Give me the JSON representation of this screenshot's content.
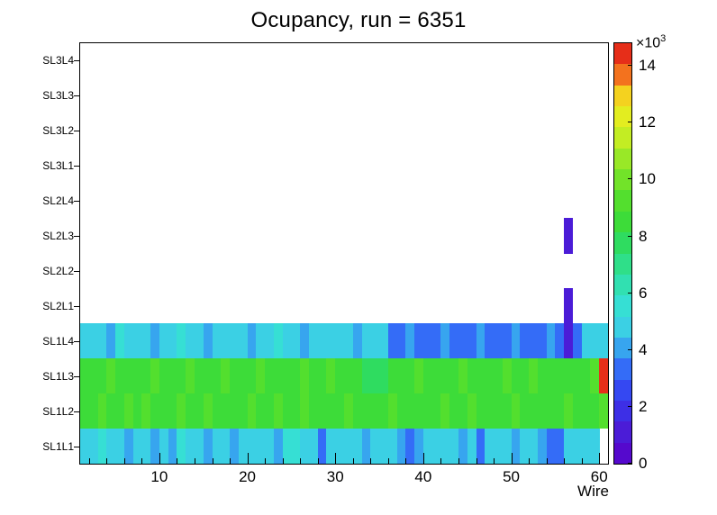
{
  "title": "Ocupancy, run = 6351",
  "axes": {
    "x_label": "Wire",
    "x_ticks": [
      10,
      20,
      30,
      40,
      50,
      60
    ],
    "x_minor_tick_step": 2,
    "colorbar": {
      "multiplier": "×10",
      "exponent": "3",
      "ticks": [
        0,
        2,
        4,
        6,
        8,
        10,
        12,
        14
      ],
      "unit_scale": 1000
    }
  },
  "chart_data": {
    "type": "heatmap",
    "title": "Ocupancy, run = 6351",
    "xlabel": "Wire",
    "x_min": 1,
    "n_wires": 60,
    "z_max": 14800,
    "n_contours": 20,
    "legend_position": "right-colorbar",
    "grid": false,
    "palette": [
      [
        0.0,
        "#5A00C8"
      ],
      [
        0.08,
        "#4A1ED8"
      ],
      [
        0.15,
        "#3538EE"
      ],
      [
        0.22,
        "#3466F8"
      ],
      [
        0.27,
        "#36A0F0"
      ],
      [
        0.32,
        "#3BCFE6"
      ],
      [
        0.38,
        "#35E0D2"
      ],
      [
        0.45,
        "#2FE09E"
      ],
      [
        0.52,
        "#2EDC64"
      ],
      [
        0.58,
        "#3EDC35"
      ],
      [
        0.65,
        "#5FE02A"
      ],
      [
        0.72,
        "#95E827"
      ],
      [
        0.79,
        "#CFEE22"
      ],
      [
        0.85,
        "#F2EC1F"
      ],
      [
        0.9,
        "#F5B71E"
      ],
      [
        0.93,
        "#F2641E"
      ],
      [
        1.0,
        "#E01016"
      ]
    ],
    "rows": [
      {
        "label": "SL1L1",
        "values": [
          5000,
          4600,
          5200,
          4600,
          4800,
          4300,
          5100,
          4600,
          4400,
          4900,
          4400,
          5200,
          4700,
          4800,
          4200,
          5000,
          4600,
          4400,
          5100,
          4700,
          4500,
          4900,
          4300,
          5400,
          5200,
          4600,
          4800,
          3600,
          4700,
          4500,
          4900,
          4600,
          4400,
          5000,
          4700,
          4600,
          3700,
          3500,
          3800,
          4600,
          4800,
          4500,
          4900,
          4300,
          4700,
          3600,
          4800,
          4600,
          5000,
          4400,
          4700,
          4500,
          3700,
          3500,
          3600,
          4600,
          4800,
          4500,
          4700,
          0
        ]
      },
      {
        "label": "SL1L2",
        "values": [
          8200,
          8800,
          9400,
          8600,
          8400,
          9000,
          8600,
          9600,
          8800,
          8400,
          8600,
          9200,
          8800,
          8600,
          9400,
          8600,
          8200,
          8800,
          8600,
          9000,
          8400,
          8600,
          9200,
          8600,
          8800,
          9400,
          8600,
          8400,
          8800,
          8600,
          9000,
          8600,
          8800,
          8400,
          8600,
          9200,
          8600,
          8800,
          8600,
          8400,
          8800,
          9000,
          8600,
          8800,
          9400,
          8600,
          8400,
          8800,
          8600,
          9000,
          8600,
          8800,
          8400,
          8600,
          8800,
          9200,
          8600,
          8800,
          8600,
          9000
        ]
      },
      {
        "label": "SL1L3",
        "values": [
          8400,
          8800,
          8600,
          9200,
          8600,
          8800,
          8400,
          8600,
          9000,
          8600,
          8800,
          8600,
          9400,
          8600,
          8800,
          8400,
          9000,
          8600,
          8800,
          8600,
          9200,
          8600,
          8400,
          8800,
          8600,
          9000,
          8600,
          8800,
          9400,
          8600,
          8400,
          8800,
          7600,
          7400,
          7800,
          8600,
          8800,
          8600,
          9000,
          8600,
          8800,
          8400,
          8600,
          9200,
          8600,
          8800,
          8600,
          8400,
          9000,
          8600,
          8800,
          9400,
          8600,
          8800,
          8600,
          8400,
          8800,
          8600,
          9000,
          14200
        ]
      },
      {
        "label": "SL1L4",
        "values": [
          5000,
          4600,
          4800,
          4400,
          5200,
          4800,
          4600,
          5000,
          4400,
          4800,
          4600,
          5200,
          4800,
          4600,
          4400,
          4800,
          5000,
          4600,
          4800,
          4400,
          4600,
          4800,
          5200,
          4600,
          4800,
          4400,
          4800,
          4600,
          5000,
          4800,
          4600,
          4400,
          4800,
          4600,
          5000,
          3600,
          3400,
          3800,
          3400,
          3600,
          3400,
          3800,
          3600,
          3400,
          3600,
          3800,
          3400,
          3600,
          3400,
          3800,
          3600,
          3400,
          3600,
          3800,
          3400,
          1200,
          3600,
          4600,
          4800,
          4600
        ]
      },
      {
        "label": "SL2L1",
        "values": [
          0,
          0,
          0,
          0,
          0,
          0,
          0,
          0,
          0,
          0,
          0,
          0,
          0,
          0,
          0,
          0,
          0,
          0,
          0,
          0,
          0,
          0,
          0,
          0,
          0,
          0,
          0,
          0,
          0,
          0,
          0,
          0,
          0,
          0,
          0,
          0,
          0,
          0,
          0,
          0,
          0,
          0,
          0,
          0,
          0,
          0,
          0,
          0,
          0,
          0,
          0,
          0,
          0,
          0,
          0,
          1300,
          0,
          0,
          0,
          0
        ]
      },
      {
        "label": "SL2L2",
        "values": []
      },
      {
        "label": "SL2L3",
        "values": [
          0,
          0,
          0,
          0,
          0,
          0,
          0,
          0,
          0,
          0,
          0,
          0,
          0,
          0,
          0,
          0,
          0,
          0,
          0,
          0,
          0,
          0,
          0,
          0,
          0,
          0,
          0,
          0,
          0,
          0,
          0,
          0,
          0,
          0,
          0,
          0,
          0,
          0,
          0,
          0,
          0,
          0,
          0,
          0,
          0,
          0,
          0,
          0,
          0,
          0,
          0,
          0,
          0,
          0,
          0,
          1400,
          0,
          0,
          0,
          0
        ]
      },
      {
        "label": "SL2L4",
        "values": []
      },
      {
        "label": "SL3L1",
        "values": []
      },
      {
        "label": "SL3L2",
        "values": []
      },
      {
        "label": "SL3L3",
        "values": []
      },
      {
        "label": "SL3L4",
        "values": []
      }
    ]
  }
}
